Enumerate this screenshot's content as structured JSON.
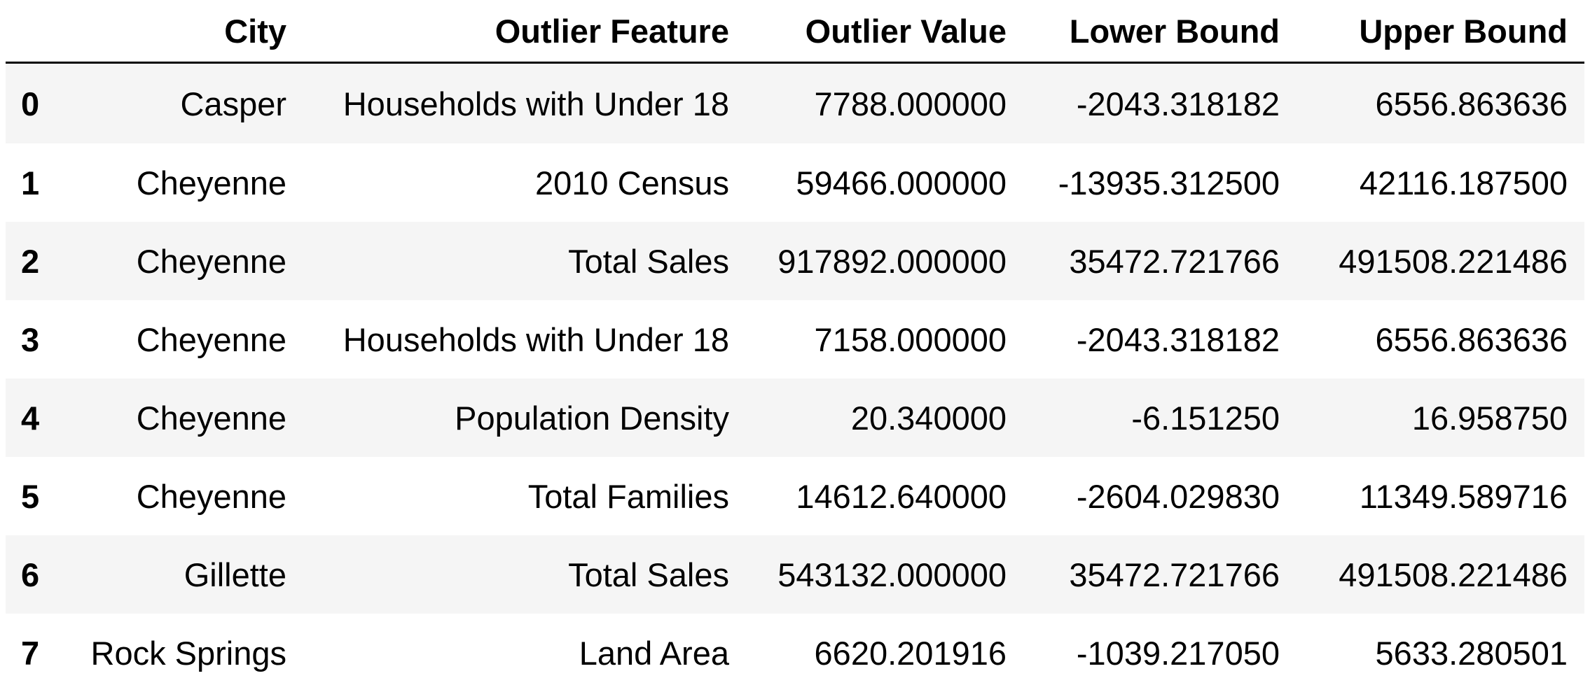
{
  "table": {
    "columns": [
      "",
      "City",
      "Outlier Feature",
      "Outlier Value",
      "Lower Bound",
      "Upper Bound"
    ],
    "rows": [
      {
        "index": "0",
        "city": "Casper",
        "feature": "Households with Under 18",
        "value": "7788.000000",
        "lower": "-2043.318182",
        "upper": "6556.863636"
      },
      {
        "index": "1",
        "city": "Cheyenne",
        "feature": "2010 Census",
        "value": "59466.000000",
        "lower": "-13935.312500",
        "upper": "42116.187500"
      },
      {
        "index": "2",
        "city": "Cheyenne",
        "feature": "Total Sales",
        "value": "917892.000000",
        "lower": "35472.721766",
        "upper": "491508.221486"
      },
      {
        "index": "3",
        "city": "Cheyenne",
        "feature": "Households with Under 18",
        "value": "7158.000000",
        "lower": "-2043.318182",
        "upper": "6556.863636"
      },
      {
        "index": "4",
        "city": "Cheyenne",
        "feature": "Population Density",
        "value": "20.340000",
        "lower": "-6.151250",
        "upper": "16.958750"
      },
      {
        "index": "5",
        "city": "Cheyenne",
        "feature": "Total Families",
        "value": "14612.640000",
        "lower": "-2604.029830",
        "upper": "11349.589716"
      },
      {
        "index": "6",
        "city": "Gillette",
        "feature": "Total Sales",
        "value": "543132.000000",
        "lower": "35472.721766",
        "upper": "491508.221486"
      },
      {
        "index": "7",
        "city": "Rock Springs",
        "feature": "Land Area",
        "value": "6620.201916",
        "lower": "-1039.217050",
        "upper": "5633.280501"
      }
    ]
  }
}
